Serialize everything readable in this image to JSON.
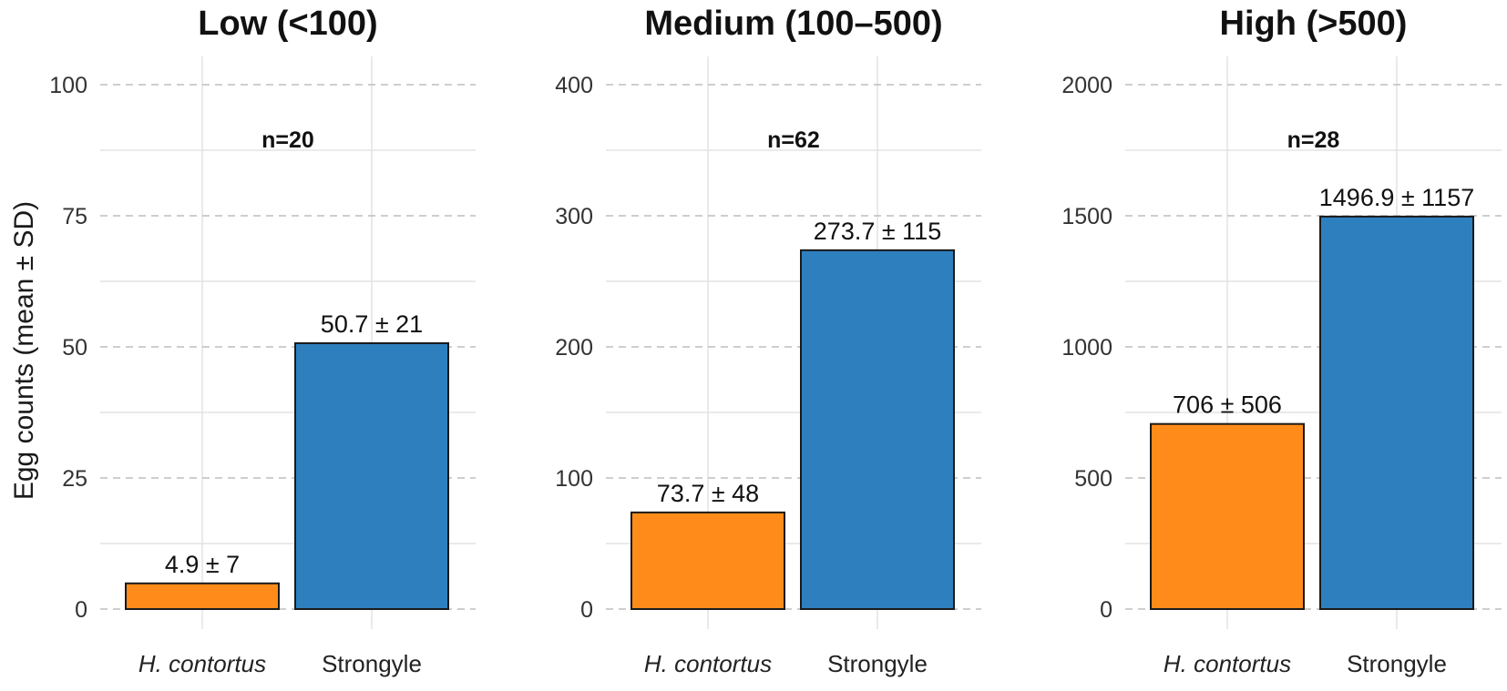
{
  "chart_data": {
    "type": "bar",
    "ylabel": "Egg counts (mean ± SD)",
    "categories": [
      "H. contortus",
      "Strongyle"
    ],
    "colors": {
      "H. contortus": "#FF8C1A",
      "Strongyle": "#2E7FBE"
    },
    "grid": true,
    "panels": [
      {
        "title": "Low (<100)",
        "n_label": "n=20",
        "ylim": [
          0,
          100
        ],
        "yticks": [
          0,
          25,
          50,
          75,
          100
        ],
        "values": [
          4.9,
          50.7
        ],
        "labels": [
          "4.9 ± 7",
          "50.7 ± 21"
        ]
      },
      {
        "title": "Medium (100–500)",
        "n_label": "n=62",
        "ylim": [
          0,
          400
        ],
        "yticks": [
          0,
          100,
          200,
          300,
          400
        ],
        "values": [
          73.7,
          273.7
        ],
        "labels": [
          "73.7 ± 48",
          "273.7 ± 115"
        ]
      },
      {
        "title": "High (>500)",
        "n_label": "n=28",
        "ylim": [
          0,
          2000
        ],
        "yticks": [
          0,
          500,
          1000,
          1500,
          2000
        ],
        "values": [
          706,
          1496.9
        ],
        "labels": [
          "706 ± 506",
          "1496.9 ± 1157"
        ]
      }
    ]
  }
}
